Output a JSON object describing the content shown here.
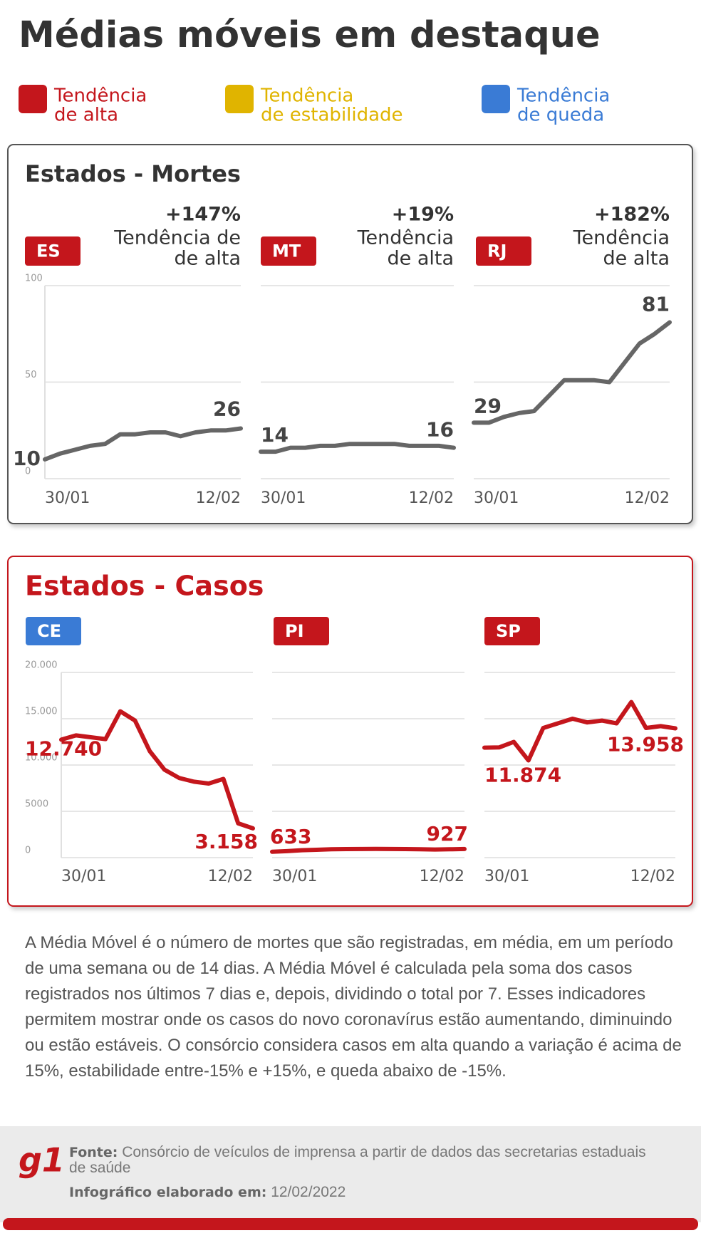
{
  "header": {
    "title": "Médias móveis em destaque"
  },
  "legend": [
    {
      "label": [
        "Tendência",
        "de alta"
      ],
      "color": "#c4161c"
    },
    {
      "label": [
        "Tendência",
        "de estabilidade"
      ],
      "color": "#e0b400"
    },
    {
      "label": [
        "Tendência",
        "de queda"
      ],
      "color": "#3a7bd5"
    }
  ],
  "chart_data": [
    {
      "type": "line",
      "title": "Estados - Mortes",
      "color": "#666666",
      "grid": true,
      "ylim": [
        0,
        100
      ],
      "yticks": [
        0,
        50,
        100
      ],
      "categories": [
        "30/01",
        null,
        null,
        null,
        null,
        null,
        null,
        null,
        null,
        null,
        null,
        null,
        null,
        "12/02"
      ],
      "panels": [
        {
          "label": "ES",
          "badge_color": "#c4161c",
          "change": "+147%",
          "trend": [
            "Tendência de",
            "de alta"
          ],
          "values": [
            10,
            13,
            15,
            17,
            18,
            23,
            23,
            24,
            24,
            22,
            24,
            25,
            25,
            26
          ]
        },
        {
          "label": "MT",
          "badge_color": "#c4161c",
          "change": "+19%",
          "trend": [
            "Tendência",
            "de alta"
          ],
          "values": [
            14,
            14,
            16,
            16,
            17,
            17,
            18,
            18,
            18,
            18,
            17,
            17,
            17,
            16
          ]
        },
        {
          "label": "RJ",
          "badge_color": "#c4161c",
          "change": "+182%",
          "trend": [
            "Tendência",
            "de alta"
          ],
          "values": [
            29,
            29,
            32,
            34,
            35,
            43,
            51,
            51,
            51,
            50,
            60,
            70,
            75,
            81
          ]
        }
      ]
    },
    {
      "type": "line",
      "title": "Estados - Casos",
      "color": "#c4161c",
      "grid": true,
      "ylim": [
        0,
        20000
      ],
      "yticks": [
        0,
        5000,
        {
          "value": 10000,
          "label": "10.000"
        },
        {
          "value": 15000,
          "label": "15.000"
        },
        {
          "value": 20000,
          "label": "20.000"
        }
      ],
      "categories": [
        "30/01",
        null,
        null,
        null,
        null,
        null,
        null,
        null,
        null,
        null,
        null,
        null,
        null,
        "12/02"
      ],
      "panels": [
        {
          "label": "CE",
          "badge_color": "#3a7bd5",
          "values": [
            12740,
            13200,
            13000,
            12800,
            15800,
            14800,
            11500,
            9500,
            8600,
            8200,
            8000,
            8500,
            3700,
            3158
          ],
          "value_labels": [
            "12.740",
            null,
            null,
            null,
            null,
            null,
            null,
            null,
            null,
            null,
            null,
            null,
            null,
            "3.158"
          ]
        },
        {
          "label": "PI",
          "badge_color": "#c4161c",
          "values": [
            633,
            700,
            800,
            850,
            900,
            920,
            930,
            940,
            930,
            920,
            900,
            880,
            900,
            927
          ],
          "value_labels": [
            "633",
            null,
            null,
            null,
            null,
            null,
            null,
            null,
            null,
            null,
            null,
            null,
            null,
            "927"
          ]
        },
        {
          "label": "SP",
          "badge_color": "#c4161c",
          "values": [
            11874,
            11900,
            12500,
            10500,
            14000,
            14500,
            15000,
            14600,
            14800,
            14500,
            16800,
            14000,
            14200,
            13958
          ],
          "value_labels": [
            "11.874",
            null,
            null,
            null,
            null,
            null,
            null,
            null,
            null,
            null,
            null,
            null,
            null,
            "13.958"
          ]
        }
      ]
    }
  ],
  "note": "A Média Móvel é o número de mortes que são registradas, em média, em um período de uma semana ou de 14 dias. A Média Móvel é calculada pela soma dos casos registrados nos últimos 7 dias e, depois, dividindo o total por 7. Esses indicadores permitem mostrar onde os casos do novo coronavírus estão aumentando, diminuindo ou estão estáveis. O consórcio considera casos em alta quando a variação é acima de 15%, estabilidade entre-15% e +15%, e queda abaixo de -15%.",
  "footer": {
    "logo": "g1",
    "source_label": "Fonte:",
    "source": "Consórcio de veículos de imprensa a partir de dados das secretarias estaduais de saúde",
    "date_label": "Infográfico elaborado em:",
    "date": "12/02/2022"
  }
}
